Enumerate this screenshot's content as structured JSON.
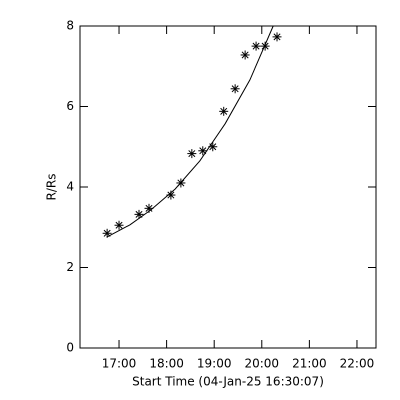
{
  "chart_data": {
    "type": "scatter",
    "xlabel": "Start Time (04-Jan-25 16:30:07)",
    "ylabel": "R/Rs",
    "xlim": [
      16.18,
      22.4
    ],
    "ylim": [
      0,
      8
    ],
    "xticks": [
      {
        "value": 17,
        "label": "17:00"
      },
      {
        "value": 18,
        "label": "18:00"
      },
      {
        "value": 19,
        "label": "19:00"
      },
      {
        "value": 20,
        "label": "20:00"
      },
      {
        "value": 21,
        "label": "21:00"
      },
      {
        "value": 22,
        "label": "22:00"
      }
    ],
    "yticks": [
      0,
      2,
      4,
      6,
      8
    ],
    "color": "#000000",
    "points": {
      "x": [
        16.75,
        17.0,
        17.42,
        17.63,
        18.09,
        18.3,
        18.53,
        18.76,
        18.97,
        19.2,
        19.44,
        19.65,
        19.88,
        20.07,
        20.32
      ],
      "y": [
        2.85,
        3.05,
        3.32,
        3.47,
        3.8,
        4.1,
        4.83,
        4.9,
        5.0,
        5.88,
        6.44,
        7.28,
        7.5,
        7.5,
        7.73
      ]
    },
    "fit": {
      "x": [
        16.75,
        17.23,
        17.67,
        18.18,
        18.7,
        19.23,
        19.75,
        20.24
      ],
      "y": [
        2.76,
        3.06,
        3.43,
        3.95,
        4.65,
        5.57,
        6.66,
        8.0
      ]
    }
  }
}
